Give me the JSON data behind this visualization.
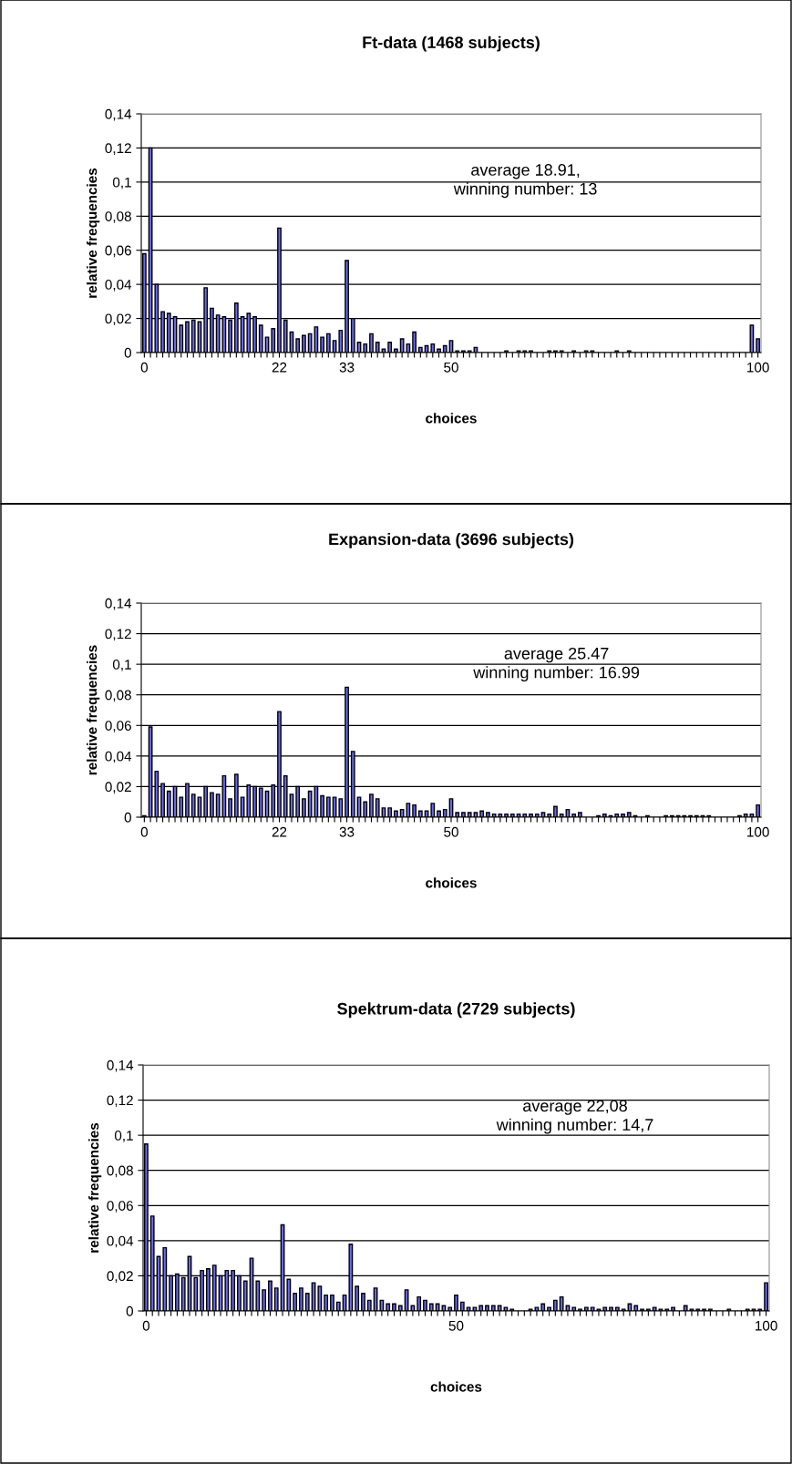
{
  "chart_data": [
    {
      "type": "bar",
      "title": "Ft-data (1468 subjects)",
      "xlabel": "choices",
      "ylabel": "relative frequencies",
      "color": "#6b6bef",
      "grid": "y",
      "categories": [
        "0",
        null,
        null,
        null,
        null,
        null,
        null,
        null,
        null,
        null,
        null,
        null,
        null,
        null,
        null,
        null,
        null,
        null,
        null,
        null,
        null,
        null,
        "22",
        null,
        null,
        null,
        null,
        null,
        null,
        null,
        null,
        null,
        null,
        "33",
        null,
        null,
        null,
        null,
        null,
        null,
        null,
        null,
        null,
        null,
        null,
        null,
        null,
        null,
        null,
        null,
        "50",
        null,
        null,
        null,
        null,
        null,
        null,
        null,
        null,
        null,
        null,
        null,
        null,
        null,
        null,
        null,
        null,
        null,
        null,
        null,
        null,
        null,
        null,
        null,
        null,
        null,
        null,
        null,
        null,
        null,
        null,
        null,
        null,
        null,
        null,
        null,
        null,
        null,
        null,
        null,
        null,
        null,
        null,
        null,
        null,
        null,
        null,
        null,
        null,
        null,
        "100"
      ],
      "values": [
        0.058,
        0.12,
        0.04,
        0.024,
        0.023,
        0.021,
        0.016,
        0.018,
        0.019,
        0.018,
        0.038,
        0.026,
        0.022,
        0.021,
        0.019,
        0.029,
        0.021,
        0.023,
        0.021,
        0.016,
        0.009,
        0.014,
        0.073,
        0.019,
        0.012,
        0.008,
        0.01,
        0.011,
        0.015,
        0.009,
        0.011,
        0.007,
        0.013,
        0.054,
        0.02,
        0.006,
        0.005,
        0.011,
        0.006,
        0.002,
        0.006,
        0.002,
        0.008,
        0.005,
        0.012,
        0.003,
        0.004,
        0.005,
        0.002,
        0.004,
        0.007,
        0.001,
        0.001,
        0.001,
        0.003,
        0,
        0,
        0,
        0,
        0.001,
        0,
        0.001,
        0.001,
        0.001,
        0,
        0,
        0.001,
        0.001,
        0.001,
        0,
        0.001,
        0,
        0.001,
        0.001,
        0,
        0,
        0,
        0.001,
        0,
        0.001,
        0,
        0,
        0,
        0,
        0,
        0,
        0,
        0,
        0,
        0,
        0,
        0,
        0,
        0,
        0,
        0,
        0,
        0,
        0,
        0.016,
        0.008
      ],
      "ylim": [
        0,
        0.14
      ],
      "yticks": [
        0,
        {
          "value": 0.02,
          "label": "0,02"
        },
        {
          "value": 0.04,
          "label": "0,04"
        },
        {
          "value": 0.06,
          "label": "0,06"
        },
        {
          "value": 0.08,
          "label": "0,08"
        },
        {
          "value": 0.1,
          "label": "0,1"
        },
        {
          "value": 0.12,
          "label": "0,12"
        },
        {
          "value": 0.14,
          "label": "0,14"
        }
      ],
      "annotations": [
        "average 18.91,\nwinning number: 13"
      ]
    },
    {
      "type": "bar",
      "title": "Expansion-data (3696 subjects)",
      "xlabel": "choices",
      "ylabel": "relative frequencies",
      "color": "#6b6bef",
      "grid": "y",
      "categories": [
        "0",
        null,
        null,
        null,
        null,
        null,
        null,
        null,
        null,
        null,
        null,
        null,
        null,
        null,
        null,
        null,
        null,
        null,
        null,
        null,
        null,
        null,
        "22",
        null,
        null,
        null,
        null,
        null,
        null,
        null,
        null,
        null,
        null,
        "33",
        null,
        null,
        null,
        null,
        null,
        null,
        null,
        null,
        null,
        null,
        null,
        null,
        null,
        null,
        null,
        null,
        "50",
        null,
        null,
        null,
        null,
        null,
        null,
        null,
        null,
        null,
        null,
        null,
        null,
        null,
        null,
        null,
        null,
        null,
        null,
        null,
        null,
        null,
        null,
        null,
        null,
        null,
        null,
        null,
        null,
        null,
        null,
        null,
        null,
        null,
        null,
        null,
        null,
        null,
        null,
        null,
        null,
        null,
        null,
        null,
        null,
        null,
        null,
        null,
        null,
        null,
        "100"
      ],
      "values": [
        0.001,
        0.059,
        0.03,
        0.022,
        0.017,
        0.02,
        0.013,
        0.022,
        0.015,
        0.013,
        0.02,
        0.016,
        0.015,
        0.027,
        0.012,
        0.028,
        0.013,
        0.021,
        0.02,
        0.019,
        0.017,
        0.021,
        0.069,
        0.027,
        0.015,
        0.02,
        0.012,
        0.017,
        0.02,
        0.014,
        0.013,
        0.013,
        0.012,
        0.085,
        0.043,
        0.013,
        0.01,
        0.015,
        0.012,
        0.006,
        0.006,
        0.004,
        0.005,
        0.009,
        0.008,
        0.004,
        0.004,
        0.009,
        0.004,
        0.005,
        0.012,
        0.003,
        0.003,
        0.003,
        0.003,
        0.004,
        0.003,
        0.002,
        0.002,
        0.002,
        0.002,
        0.002,
        0.002,
        0.002,
        0.002,
        0.003,
        0.002,
        0.007,
        0.002,
        0.005,
        0.002,
        0.003,
        0,
        0,
        0.001,
        0.002,
        0.001,
        0.002,
        0.002,
        0.003,
        0.001,
        0,
        0.001,
        0,
        0,
        0.001,
        0.001,
        0.001,
        0.001,
        0.001,
        0.001,
        0.001,
        0.001,
        0,
        0,
        0,
        0,
        0.001,
        0.002,
        0.002,
        0.008
      ],
      "ylim": [
        0,
        0.14
      ],
      "yticks": [
        0,
        {
          "value": 0.02,
          "label": "0,02"
        },
        {
          "value": 0.04,
          "label": "0,04"
        },
        {
          "value": 0.06,
          "label": "0,06"
        },
        {
          "value": 0.08,
          "label": "0,08"
        },
        {
          "value": 0.1,
          "label": "0,1"
        },
        {
          "value": 0.12,
          "label": "0,12"
        },
        {
          "value": 0.14,
          "label": "0,14"
        }
      ],
      "annotations": [
        "average 25.47\nwinning number: 16.99"
      ]
    },
    {
      "type": "bar",
      "title": "Spektrum-data (2729 subjects)",
      "xlabel": "choices",
      "ylabel": "relative frequencies",
      "color": "#6b6bef",
      "grid": "y",
      "categories": [
        "0",
        null,
        null,
        null,
        null,
        null,
        null,
        null,
        null,
        null,
        null,
        null,
        null,
        null,
        null,
        null,
        null,
        null,
        null,
        null,
        null,
        null,
        null,
        null,
        null,
        null,
        null,
        null,
        null,
        null,
        null,
        null,
        null,
        null,
        null,
        null,
        null,
        null,
        null,
        null,
        null,
        null,
        null,
        null,
        null,
        null,
        null,
        null,
        null,
        null,
        "50",
        null,
        null,
        null,
        null,
        null,
        null,
        null,
        null,
        null,
        null,
        null,
        null,
        null,
        null,
        null,
        null,
        null,
        null,
        null,
        null,
        null,
        null,
        null,
        null,
        null,
        null,
        null,
        null,
        null,
        null,
        null,
        null,
        null,
        null,
        null,
        null,
        null,
        null,
        null,
        null,
        null,
        null,
        null,
        null,
        null,
        null,
        null,
        null,
        null,
        "100"
      ],
      "values": [
        0.095,
        0.054,
        0.031,
        0.036,
        0.02,
        0.021,
        0.019,
        0.031,
        0.019,
        0.023,
        0.024,
        0.026,
        0.02,
        0.023,
        0.023,
        0.02,
        0.017,
        0.03,
        0.017,
        0.012,
        0.017,
        0.013,
        0.049,
        0.018,
        0.01,
        0.013,
        0.01,
        0.016,
        0.014,
        0.009,
        0.009,
        0.005,
        0.009,
        0.038,
        0.014,
        0.01,
        0.006,
        0.013,
        0.006,
        0.004,
        0.004,
        0.003,
        0.012,
        0.003,
        0.008,
        0.006,
        0.004,
        0.004,
        0.003,
        0.002,
        0.009,
        0.005,
        0.002,
        0.002,
        0.003,
        0.003,
        0.003,
        0.003,
        0.002,
        0.001,
        0,
        0,
        0.001,
        0.002,
        0.004,
        0.002,
        0.006,
        0.008,
        0.003,
        0.002,
        0.001,
        0.002,
        0.002,
        0.001,
        0.002,
        0.002,
        0.002,
        0.001,
        0.004,
        0.003,
        0.001,
        0.001,
        0.002,
        0.001,
        0.001,
        0.002,
        0,
        0.003,
        0.001,
        0.001,
        0.001,
        0.001,
        0,
        0,
        0.001,
        0,
        0,
        0.001,
        0.001,
        0.001,
        0.016
      ],
      "ylim": [
        0,
        0.14
      ],
      "yticks": [
        0,
        {
          "value": 0.02,
          "label": "0,02"
        },
        {
          "value": 0.04,
          "label": "0,04"
        },
        {
          "value": 0.06,
          "label": "0,06"
        },
        {
          "value": 0.08,
          "label": "0,08"
        },
        {
          "value": 0.1,
          "label": "0,1"
        },
        {
          "value": 0.12,
          "label": "0,12"
        },
        {
          "value": 0.14,
          "label": "0,14"
        }
      ],
      "annotations": [
        "average 22,08\nwinning number: 14,7"
      ]
    }
  ]
}
